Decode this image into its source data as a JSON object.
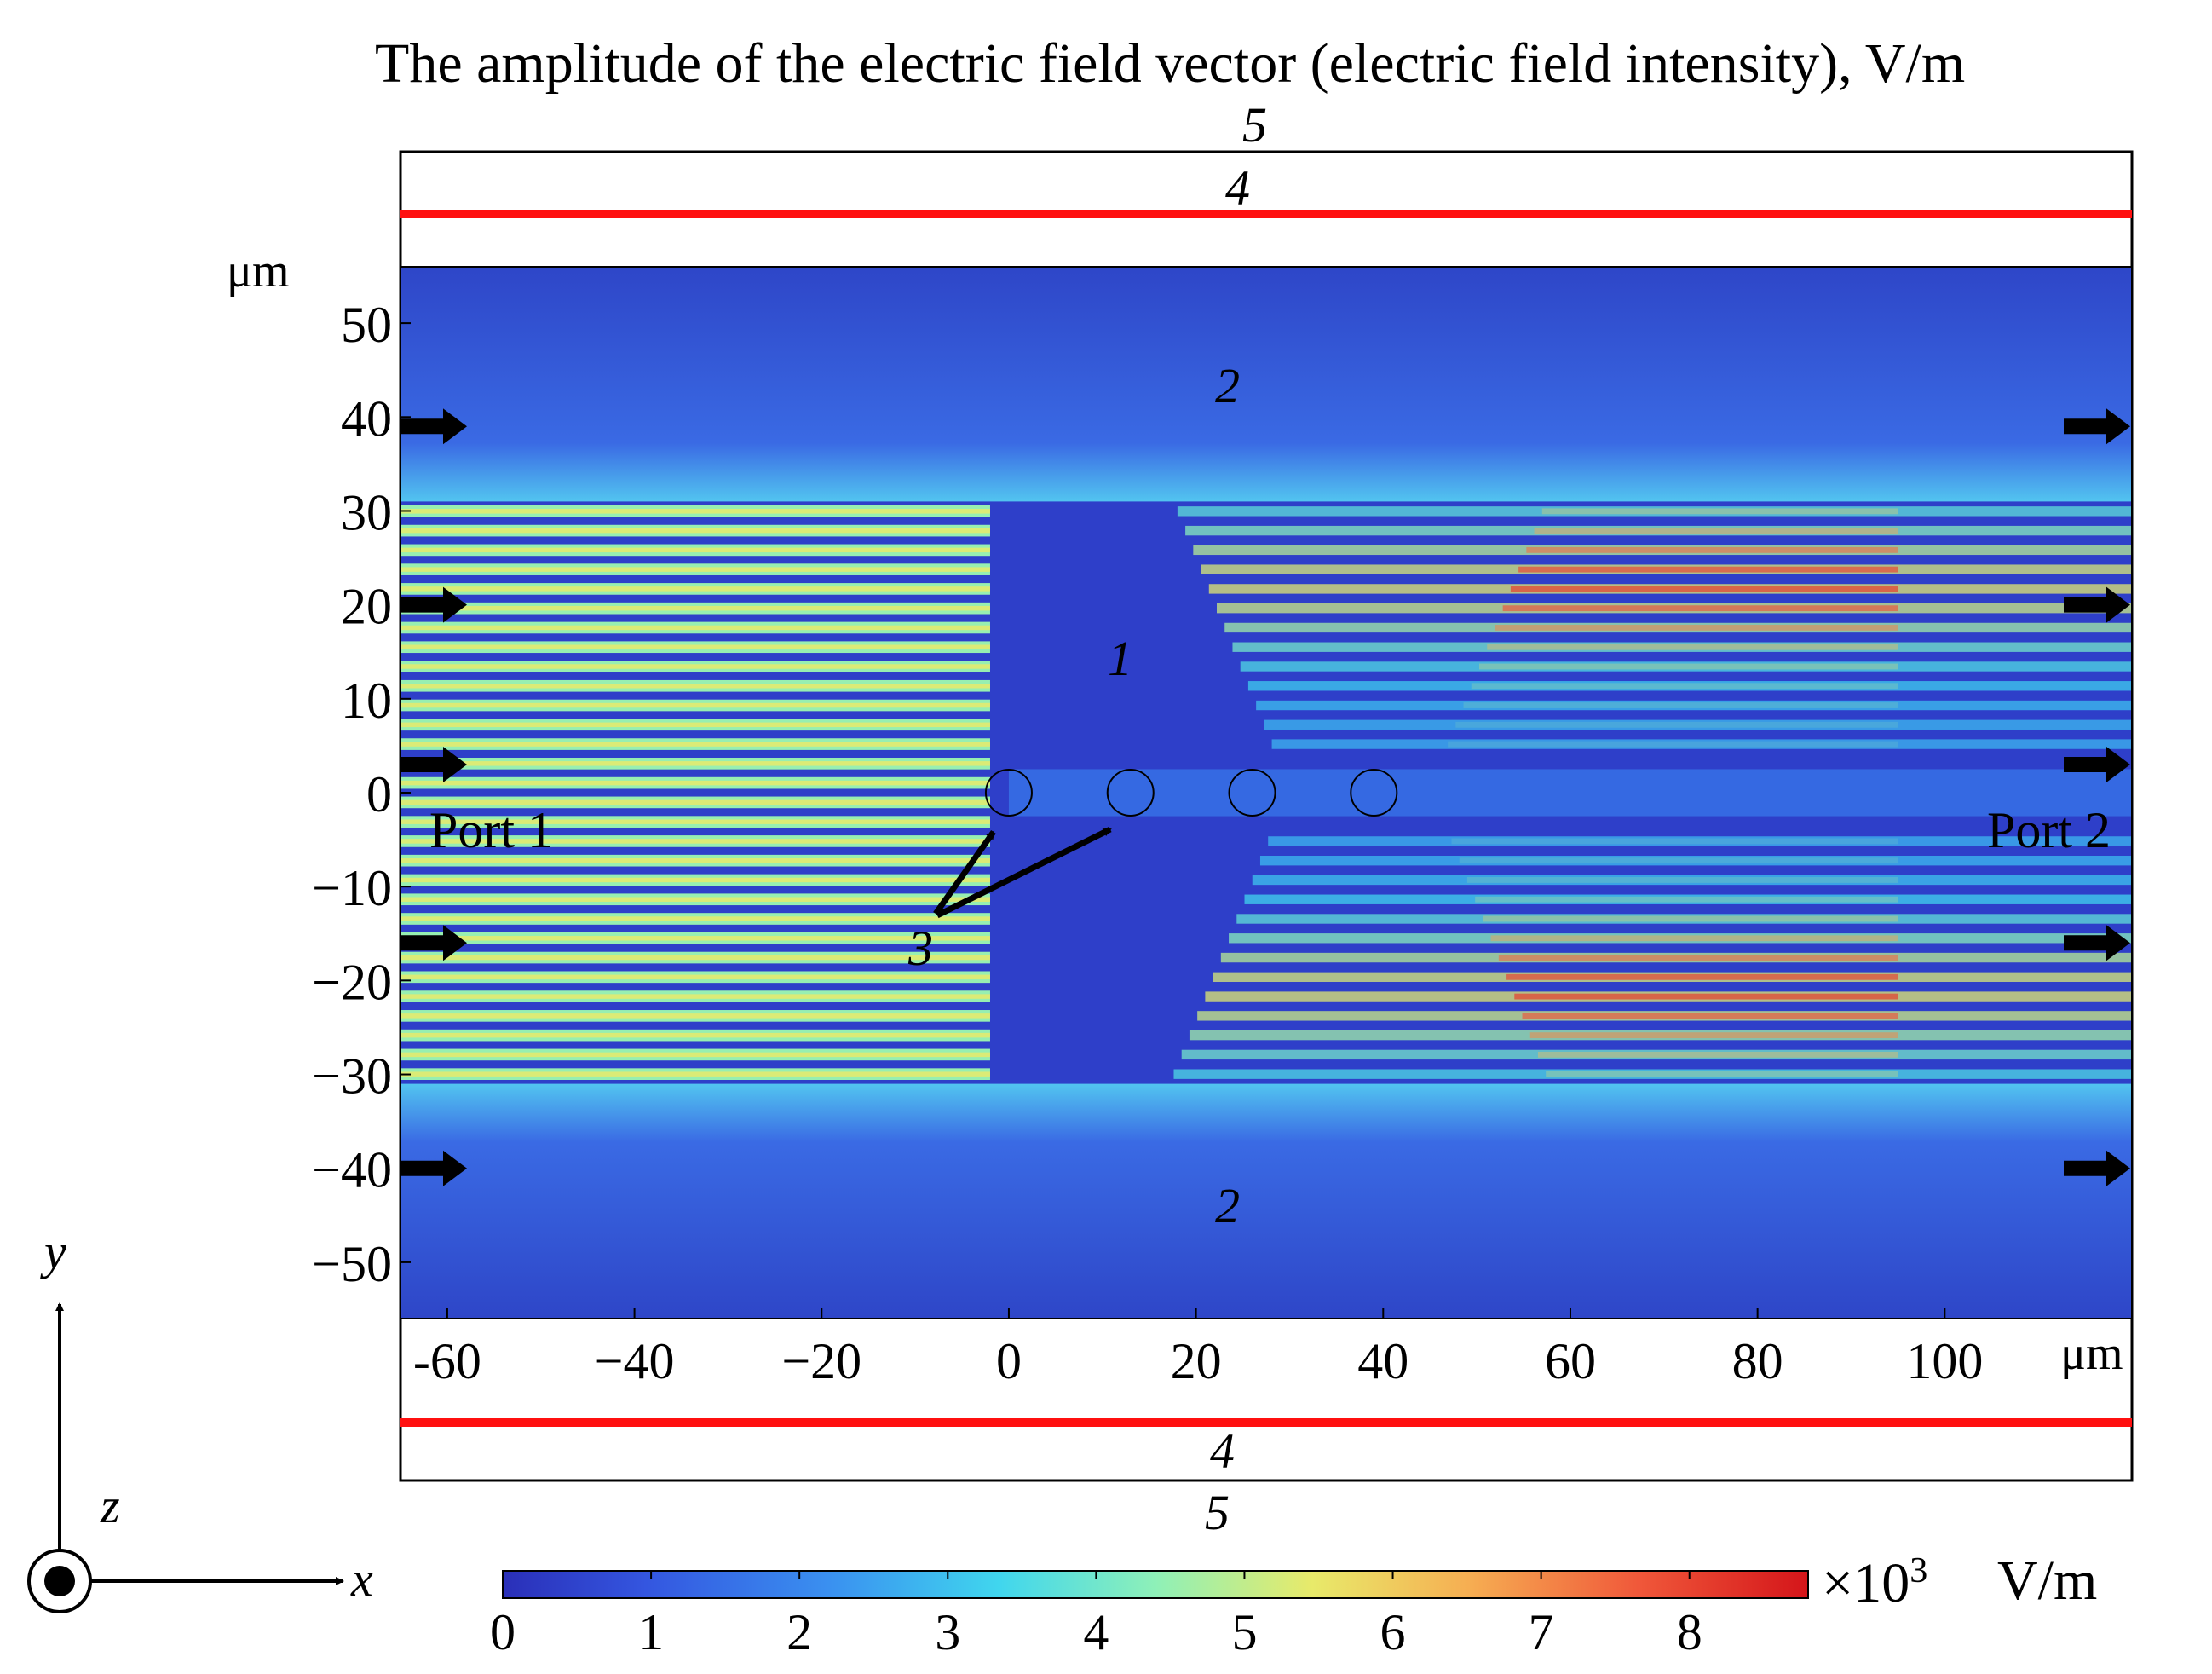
{
  "chart_data": {
    "type": "heatmap",
    "title": "The amplitude of the electric field vector (electric field intensity), V/m",
    "x_axis": {
      "unit": "μm",
      "range": [
        -65,
        120
      ],
      "ticks": [
        -60,
        -40,
        -20,
        0,
        20,
        40,
        60,
        80,
        100
      ],
      "tick_labels": [
        "-60",
        "−40",
        "−20",
        "0",
        "20",
        "40",
        "60",
        "80",
        "100"
      ]
    },
    "y_axis": {
      "unit": "μm",
      "range": [
        -56,
        56
      ],
      "ticks": [
        50,
        40,
        30,
        20,
        10,
        0,
        -10,
        -20,
        -30,
        -40,
        -50
      ],
      "tick_labels": [
        "50",
        "40",
        "30",
        "20",
        "10",
        "0",
        "−10",
        "−20",
        "−30",
        "−40",
        "−50"
      ]
    },
    "colorbar": {
      "range": [
        0,
        8.8
      ],
      "ticks": [
        0,
        1,
        2,
        3,
        4,
        5,
        6,
        7,
        8
      ],
      "tick_labels": [
        "0",
        "1",
        "2",
        "3",
        "4",
        "5",
        "6",
        "7",
        "8"
      ],
      "multiplier_prefix": "×10",
      "multiplier_exponent": "3",
      "unit": "V/m",
      "colormap": "jet"
    },
    "waveguide_core": {
      "y_range": [
        -31,
        31
      ],
      "stripe_period_um": 2.1,
      "peak_amplitude": 4.5
    },
    "cladding_field_amplitude": 0.6,
    "scatterers": [
      {
        "x": 0,
        "y": 0
      },
      {
        "x": 13,
        "y": 0
      },
      {
        "x": 26,
        "y": 0
      },
      {
        "x": 39,
        "y": 0
      }
    ],
    "region_labels": {
      "core": "1",
      "cladding_top": "2",
      "cladding_bottom": "2",
      "scatterers": "3",
      "pml_top": "4",
      "pml_bottom": "4",
      "boundary_top": "5",
      "boundary_bottom": "5"
    },
    "ports": [
      "Port 1",
      "Port 2"
    ],
    "arrow_y_positions": [
      39,
      20,
      3,
      -16,
      -40
    ],
    "coordinate_axes": [
      "y",
      "z",
      "x"
    ],
    "colors": {
      "pml_line": "#ff0000",
      "arrow": "#000000",
      "frame": "#000000"
    }
  }
}
